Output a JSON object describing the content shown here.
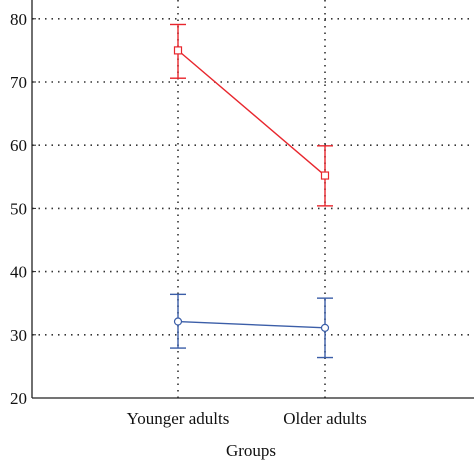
{
  "chart_data": {
    "type": "line",
    "title": "",
    "xlabel": "Groups",
    "ylabel": "",
    "categories": [
      "Younger adults",
      "Older adults"
    ],
    "ylim": [
      20,
      85
    ],
    "yticks": [
      20,
      30,
      40,
      50,
      60,
      70,
      80
    ],
    "ytick_labels": [
      "20",
      "30",
      "40",
      "50",
      "60",
      "70",
      "80"
    ],
    "grid": true,
    "series": [
      {
        "values": [
          75,
          55.2
        ],
        "error_low": [
          70.6,
          50.4
        ],
        "error_high": [
          79.1,
          59.9
        ],
        "marker": "square",
        "color": "#e8262d"
      },
      {
        "values": [
          32.1,
          31.1
        ],
        "error_low": [
          27.9,
          26.4
        ],
        "error_high": [
          36.4,
          35.8
        ],
        "marker": "circle",
        "color": "#3b5ea8"
      }
    ]
  }
}
